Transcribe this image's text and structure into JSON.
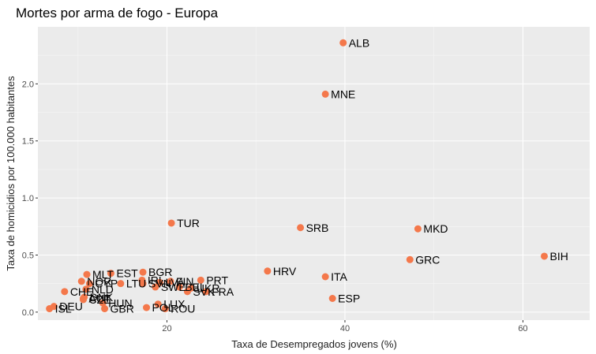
{
  "chart_data": {
    "type": "scatter",
    "title": "Mortes por arma de fogo - Europa",
    "xlabel": "Taxa de Desempregados jovens (%)",
    "ylabel": "Taxa de homicidios por 100.000 habitantes",
    "xlim": [
      5.5,
      67.5
    ],
    "ylim": [
      -0.07,
      2.5
    ],
    "xticks": [
      20,
      40,
      60
    ],
    "yticks": [
      0.0,
      0.5,
      1.0,
      1.5,
      2.0
    ],
    "xtick_labels": [
      "20",
      "40",
      "60"
    ],
    "ytick_labels": [
      "0.0",
      "0.5",
      "1.0",
      "1.5",
      "2.0"
    ],
    "grid": true,
    "background": "#ebebeb",
    "point_color": "#f4784b",
    "points": [
      {
        "label": "ALB",
        "x": 39.8,
        "y": 2.36
      },
      {
        "label": "MNE",
        "x": 37.8,
        "y": 1.91
      },
      {
        "label": "TUR",
        "x": 20.5,
        "y": 0.78
      },
      {
        "label": "SRB",
        "x": 35.0,
        "y": 0.74
      },
      {
        "label": "MKD",
        "x": 48.2,
        "y": 0.73
      },
      {
        "label": "BIH",
        "x": 62.4,
        "y": 0.49
      },
      {
        "label": "GRC",
        "x": 47.3,
        "y": 0.46
      },
      {
        "label": "HRV",
        "x": 31.3,
        "y": 0.36
      },
      {
        "label": "ITA",
        "x": 37.8,
        "y": 0.31
      },
      {
        "label": "ESP",
        "x": 38.6,
        "y": 0.12
      },
      {
        "label": "BGR",
        "x": 17.3,
        "y": 0.35
      },
      {
        "label": "EST",
        "x": 13.7,
        "y": 0.34
      },
      {
        "label": "MLT",
        "x": 11.0,
        "y": 0.33
      },
      {
        "label": "PRT",
        "x": 23.8,
        "y": 0.28
      },
      {
        "label": "IRL",
        "x": 17.2,
        "y": 0.28
      },
      {
        "label": "FIN",
        "x": 20.4,
        "y": 0.27
      },
      {
        "label": "NOR",
        "x": 10.4,
        "y": 0.27
      },
      {
        "label": "CYP",
        "x": 11.3,
        "y": 0.25
      },
      {
        "label": "LTU",
        "x": 14.8,
        "y": 0.25
      },
      {
        "label": "SVN",
        "x": 17.3,
        "y": 0.25
      },
      {
        "label": "LVA",
        "x": 19.2,
        "y": 0.26
      },
      {
        "label": "SWE",
        "x": 18.7,
        "y": 0.22
      },
      {
        "label": "BEL",
        "x": 21.4,
        "y": 0.22
      },
      {
        "label": "UKR",
        "x": 22.7,
        "y": 0.21
      },
      {
        "label": "NLD",
        "x": 10.9,
        "y": 0.2
      },
      {
        "label": "SVK",
        "x": 22.3,
        "y": 0.18
      },
      {
        "label": "FRA",
        "x": 24.4,
        "y": 0.18
      },
      {
        "label": "CHE",
        "x": 8.5,
        "y": 0.18
      },
      {
        "label": "DNK",
        "x": 10.7,
        "y": 0.13
      },
      {
        "label": "AUT",
        "x": 10.6,
        "y": 0.12
      },
      {
        "label": "CZE",
        "x": 10.6,
        "y": 0.11
      },
      {
        "label": "HUN",
        "x": 12.8,
        "y": 0.08
      },
      {
        "label": "LUX",
        "x": 19.0,
        "y": 0.07
      },
      {
        "label": "DEU",
        "x": 7.3,
        "y": 0.05
      },
      {
        "label": "ISL",
        "x": 6.8,
        "y": 0.03
      },
      {
        "label": "GBR",
        "x": 13.0,
        "y": 0.03
      },
      {
        "label": "POL",
        "x": 17.7,
        "y": 0.04
      },
      {
        "label": "ROU",
        "x": 19.8,
        "y": 0.03
      }
    ]
  }
}
